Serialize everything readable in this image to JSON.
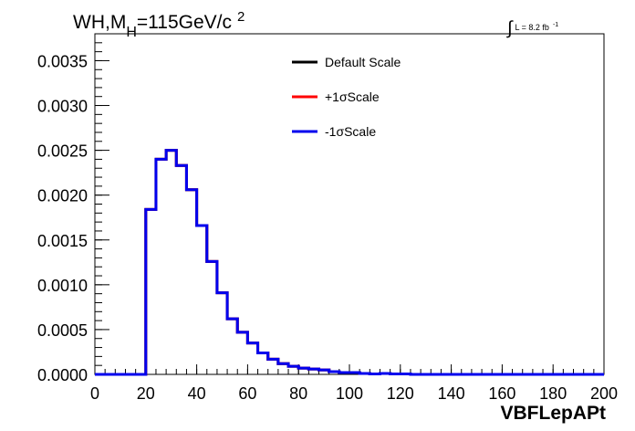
{
  "chart_data": {
    "type": "line",
    "title": {
      "main": "WH,M",
      "subscript": "H",
      "rest": "=115GeV/c",
      "superscript": "2"
    },
    "luminosity": {
      "symbol": "∫",
      "text": "L = 8.2 fb",
      "superscript": "-1"
    },
    "xlabel": "VBFLepAPt",
    "ylabel": "",
    "xlim": [
      0,
      200
    ],
    "ylim": [
      0,
      0.0038
    ],
    "x_ticks": [
      "0",
      "20",
      "40",
      "60",
      "80",
      "100",
      "120",
      "140",
      "160",
      "180",
      "200"
    ],
    "y_ticks": [
      "0.0000",
      "0.0005",
      "0.0010",
      "0.0015",
      "0.0020",
      "0.0025",
      "0.0030",
      "0.0035"
    ],
    "grid": false,
    "legend_placement": "top-center",
    "bin_edges": [
      0,
      20,
      24,
      28,
      32,
      36,
      40,
      44,
      48,
      52,
      56,
      60,
      64,
      68,
      72,
      76,
      80,
      84,
      88,
      92,
      96,
      100,
      104,
      108,
      112,
      116,
      120,
      124,
      200
    ],
    "series": [
      {
        "name": "Default Scale",
        "color": "#000000",
        "values": [
          0,
          0.00184,
          0.0024,
          0.0025,
          0.00233,
          0.00206,
          0.00166,
          0.00126,
          0.00091,
          0.00062,
          0.00047,
          0.00035,
          0.00024,
          0.00017,
          0.00012,
          9e-05,
          7e-05,
          6e-05,
          5e-05,
          3e-05,
          2e-05,
          2e-05,
          1e-05,
          5e-06,
          1e-05,
          5e-06,
          5e-06,
          0
        ]
      },
      {
        "name": "+1σScale",
        "color": "#ff0000",
        "values": [
          0,
          0.00184,
          0.0024,
          0.0025,
          0.00233,
          0.00206,
          0.00166,
          0.00126,
          0.00091,
          0.00062,
          0.00047,
          0.00035,
          0.00024,
          0.00017,
          0.00012,
          9e-05,
          7e-05,
          6e-05,
          5e-05,
          3e-05,
          2e-05,
          2e-05,
          1e-05,
          5e-06,
          1e-05,
          5e-06,
          5e-06,
          0
        ]
      },
      {
        "name": "-1σScale",
        "color": "#0000ee",
        "values": [
          0,
          0.00184,
          0.0024,
          0.0025,
          0.00233,
          0.00206,
          0.00166,
          0.00126,
          0.00091,
          0.00062,
          0.00047,
          0.00035,
          0.00024,
          0.00017,
          0.00012,
          9e-05,
          7e-05,
          6e-05,
          5e-05,
          3e-05,
          2e-05,
          2e-05,
          1e-05,
          5e-06,
          1e-05,
          5e-06,
          5e-06,
          0
        ]
      }
    ]
  }
}
